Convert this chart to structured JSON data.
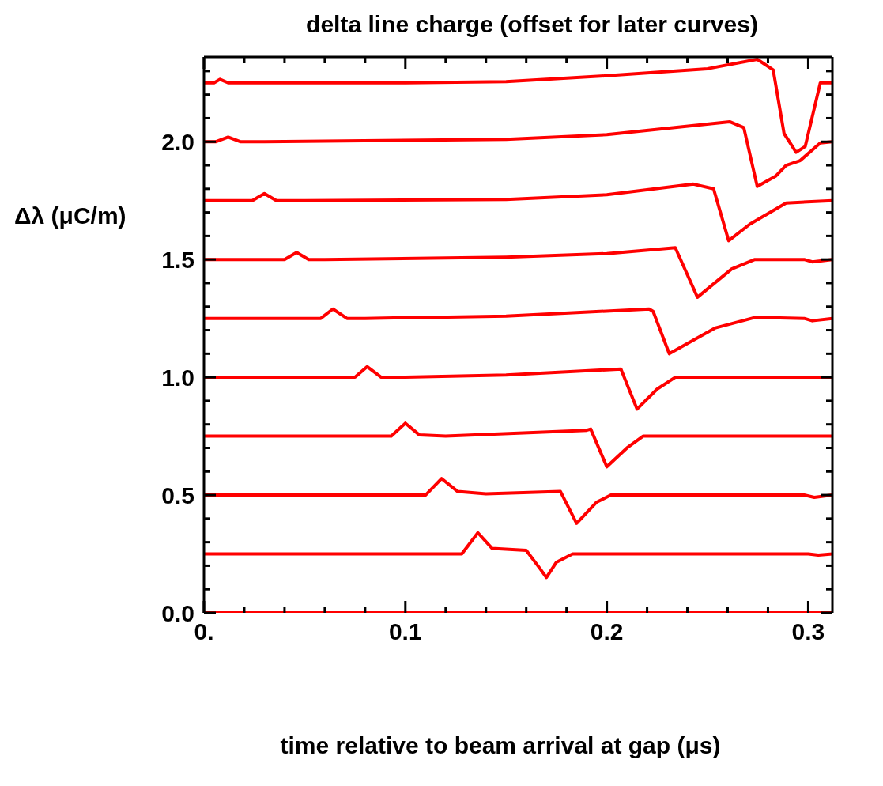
{
  "chart_data": {
    "type": "line",
    "title": "delta line charge (offset for later curves)",
    "xlabel": "time relative to beam arrival at gap (μs)",
    "ylabel": "Δλ (μC/m)",
    "xlim": [
      0,
      0.312
    ],
    "ylim": [
      0,
      2.36
    ],
    "xticks": [
      {
        "value": 0,
        "label": "0."
      },
      {
        "value": 0.02,
        "label": null
      },
      {
        "value": 0.04,
        "label": null
      },
      {
        "value": 0.06,
        "label": null
      },
      {
        "value": 0.08,
        "label": null
      },
      0.1,
      {
        "value": 0.12,
        "label": null
      },
      {
        "value": 0.14,
        "label": null
      },
      {
        "value": 0.16,
        "label": null
      },
      {
        "value": 0.18,
        "label": null
      },
      0.2,
      {
        "value": 0.22,
        "label": null
      },
      {
        "value": 0.24,
        "label": null
      },
      {
        "value": 0.26,
        "label": null
      },
      {
        "value": 0.28,
        "label": null
      },
      0.3
    ],
    "yticks": [
      {
        "value": 0,
        "label": "0.0"
      },
      {
        "value": 0.1,
        "label": null
      },
      {
        "value": 0.2,
        "label": null
      },
      {
        "value": 0.3,
        "label": null
      },
      {
        "value": 0.4,
        "label": null
      },
      0.5,
      {
        "value": 0.6,
        "label": null
      },
      {
        "value": 0.7,
        "label": null
      },
      {
        "value": 0.8,
        "label": null
      },
      {
        "value": 0.9,
        "label": null
      },
      {
        "value": 1,
        "label": "1.0"
      },
      {
        "value": 1.1,
        "label": null
      },
      {
        "value": 1.2,
        "label": null
      },
      {
        "value": 1.3,
        "label": null
      },
      {
        "value": 1.4,
        "label": null
      },
      1.5,
      {
        "value": 1.6,
        "label": null
      },
      {
        "value": 1.7,
        "label": null
      },
      {
        "value": 1.8,
        "label": null
      },
      {
        "value": 1.9,
        "label": null
      },
      {
        "value": 2,
        "label": "2.0"
      },
      {
        "value": 2.1,
        "label": null
      },
      {
        "value": 2.2,
        "label": null
      },
      {
        "value": 2.3,
        "label": null
      }
    ],
    "grid": false,
    "marker": "none",
    "line_style": "solid",
    "series": [
      {
        "color": "#ff0000",
        "x": [
          0,
          0.312
        ],
        "values": [
          0,
          0
        ]
      },
      {
        "color": "#ff0000",
        "x": [
          0,
          0.06,
          0.128,
          0.136,
          0.143,
          0.16,
          0.167,
          0.17,
          0.175,
          0.183,
          0.25,
          0.3,
          0.305,
          0.312
        ],
        "values": [
          0.25,
          0.25,
          0.25,
          0.34,
          0.274,
          0.265,
          0.186,
          0.15,
          0.215,
          0.25,
          0.25,
          0.25,
          0.245,
          0.25
        ]
      },
      {
        "color": "#ff0000",
        "x": [
          0,
          0.05,
          0.11,
          0.118,
          0.126,
          0.14,
          0.177,
          0.185,
          0.195,
          0.202,
          0.25,
          0.298,
          0.303,
          0.312
        ],
        "values": [
          0.5,
          0.5,
          0.5,
          0.57,
          0.515,
          0.505,
          0.515,
          0.38,
          0.47,
          0.5,
          0.5,
          0.5,
          0.49,
          0.5
        ]
      },
      {
        "color": "#ff0000",
        "x": [
          0,
          0.06,
          0.093,
          0.1,
          0.107,
          0.12,
          0.19,
          0.192,
          0.2,
          0.21,
          0.218,
          0.312
        ],
        "values": [
          0.75,
          0.75,
          0.75,
          0.805,
          0.755,
          0.75,
          0.775,
          0.78,
          0.62,
          0.7,
          0.75,
          0.75
        ]
      },
      {
        "color": "#ff0000",
        "x": [
          0,
          0.075,
          0.081,
          0.088,
          0.1,
          0.15,
          0.207,
          0.215,
          0.225,
          0.234,
          0.312
        ],
        "values": [
          1,
          1,
          1.045,
          1,
          1,
          1.01,
          1.035,
          0.865,
          0.95,
          1,
          1
        ]
      },
      {
        "color": "#ff0000",
        "x": [
          0,
          0.058,
          0.064,
          0.071,
          0.08,
          0.15,
          0.221,
          0.223,
          0.231,
          0.254,
          0.274,
          0.298,
          0.302,
          0.312
        ],
        "values": [
          1.25,
          1.25,
          1.29,
          1.25,
          1.25,
          1.26,
          1.29,
          1.28,
          1.1,
          1.21,
          1.255,
          1.25,
          1.24,
          1.25
        ]
      },
      {
        "color": "#ff0000",
        "x": [
          0,
          0.04,
          0.046,
          0.052,
          0.06,
          0.15,
          0.2,
          0.234,
          0.245,
          0.262,
          0.2735,
          0.298,
          0.302,
          0.312
        ],
        "values": [
          1.5,
          1.5,
          1.53,
          1.5,
          1.5,
          1.51,
          1.525,
          1.55,
          1.34,
          1.46,
          1.5,
          1.5,
          1.49,
          1.5
        ]
      },
      {
        "color": "#ff0000",
        "x": [
          0,
          0.024,
          0.03,
          0.036,
          0.05,
          0.15,
          0.2,
          0.243,
          0.253,
          0.2605,
          0.271,
          0.289,
          0.312
        ],
        "values": [
          1.75,
          1.75,
          1.78,
          1.75,
          1.75,
          1.755,
          1.775,
          1.82,
          1.8,
          1.58,
          1.65,
          1.74,
          1.75
        ]
      },
      {
        "color": "#ff0000",
        "x": [
          0,
          0.006,
          0.012,
          0.018,
          0.03,
          0.15,
          0.2,
          0.261,
          0.268,
          0.2747,
          0.284,
          0.289,
          0.296,
          0.306,
          0.312
        ],
        "values": [
          2,
          2,
          2.02,
          2,
          2,
          2.01,
          2.03,
          2.085,
          2.06,
          1.81,
          1.855,
          1.9,
          1.92,
          1.995,
          2
        ]
      },
      {
        "color": "#ff0000",
        "x": [
          0,
          0.005,
          0.008,
          0.012,
          0.05,
          0.1,
          0.15,
          0.2,
          0.25,
          0.2747,
          0.2826,
          0.288,
          0.294,
          0.2985,
          0.306,
          0.312
        ],
        "values": [
          2.25,
          2.25,
          2.265,
          2.25,
          2.25,
          2.25,
          2.255,
          2.28,
          2.31,
          2.35,
          2.305,
          2.035,
          1.955,
          1.98,
          2.25,
          2.25
        ]
      }
    ]
  }
}
